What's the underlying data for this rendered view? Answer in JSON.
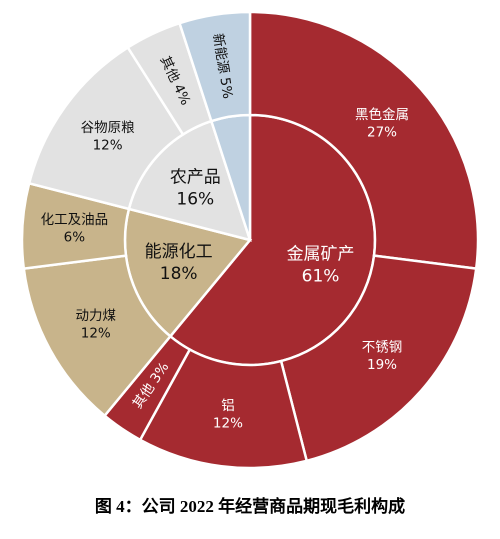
{
  "chart_data": {
    "type": "sunburst",
    "inner": {
      "categories": [
        "金属矿产",
        "能源化工",
        "农产品",
        null
      ],
      "values": [
        61,
        18,
        16,
        5
      ],
      "value_labels": [
        "61%",
        "18%",
        "16%",
        null
      ],
      "colors": [
        "#a52a30",
        "#c8b48b",
        "#e2e2e2",
        "#bfd1e1"
      ]
    },
    "outer": {
      "categories": [
        "黑色金属",
        "不锈钢",
        "铝",
        "其他",
        "动力煤",
        "化工及油品",
        "谷物原粮",
        "其他",
        "新能源"
      ],
      "values": [
        27,
        19,
        12,
        3,
        12,
        6,
        12,
        4,
        5
      ],
      "value_labels": [
        "27%",
        "19%",
        "12%",
        "3%",
        "12%",
        "6%",
        "12%",
        "4%",
        "5%"
      ],
      "colors": [
        "#a52a30",
        "#a52a30",
        "#a52a30",
        "#a52a30",
        "#c8b48b",
        "#c8b48b",
        "#e2e2e2",
        "#e2e2e2",
        "#bfd1e1"
      ]
    },
    "caption": "图 4：公司 2022 年经营商品期现毛利构成"
  }
}
